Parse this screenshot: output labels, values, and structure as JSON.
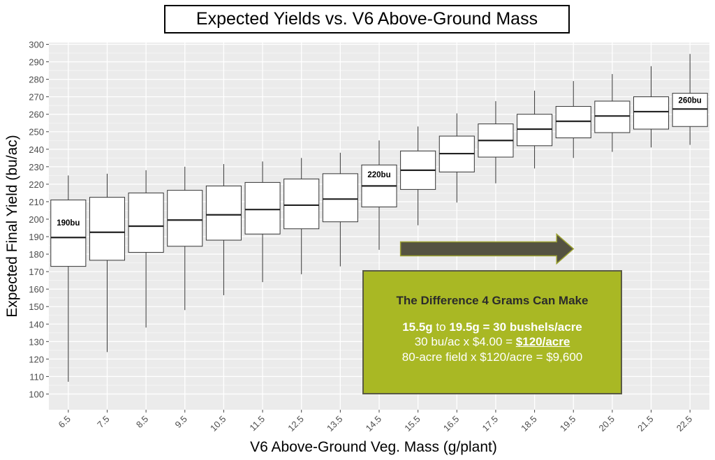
{
  "chart_data": {
    "type": "box",
    "title": "Expected Yields vs. V6 Above-Ground Mass",
    "xlabel": "V6 Above-Ground Veg. Mass (g/plant)",
    "ylabel": "Expected Final Yield (bu/ac)",
    "ylim": [
      91,
      301
    ],
    "yticks": [
      100,
      110,
      120,
      130,
      140,
      150,
      160,
      170,
      180,
      190,
      200,
      210,
      220,
      230,
      240,
      250,
      260,
      270,
      280,
      290,
      300
    ],
    "grid": true,
    "categories": [
      "6.5",
      "7.5",
      "8.5",
      "9.5",
      "10.5",
      "11.5",
      "12.5",
      "13.5",
      "14.5",
      "15.5",
      "16.5",
      "17.5",
      "18.5",
      "19.5",
      "20.5",
      "21.5",
      "22.5"
    ],
    "boxes": [
      {
        "min": 107,
        "q1": 173,
        "median": 189.5,
        "q3": 211,
        "max": 225
      },
      {
        "min": 124,
        "q1": 176.5,
        "median": 192.5,
        "q3": 212.5,
        "max": 226
      },
      {
        "min": 138,
        "q1": 181,
        "median": 196,
        "q3": 215,
        "max": 228
      },
      {
        "min": 148,
        "q1": 184.5,
        "median": 199.5,
        "q3": 216.5,
        "max": 230
      },
      {
        "min": 156.5,
        "q1": 188,
        "median": 202.5,
        "q3": 219,
        "max": 231.5
      },
      {
        "min": 164,
        "q1": 191.5,
        "median": 205.5,
        "q3": 221,
        "max": 233
      },
      {
        "min": 168.5,
        "q1": 194.5,
        "median": 208,
        "q3": 223,
        "max": 235
      },
      {
        "min": 173,
        "q1": 198.5,
        "median": 211.5,
        "q3": 226,
        "max": 238
      },
      {
        "min": 182.5,
        "q1": 207,
        "median": 219,
        "q3": 231,
        "max": 245
      },
      {
        "min": 196.5,
        "q1": 217,
        "median": 228,
        "q3": 239,
        "max": 253
      },
      {
        "min": 209.5,
        "q1": 227,
        "median": 237.5,
        "q3": 247.5,
        "max": 260.5
      },
      {
        "min": 220.5,
        "q1": 235.5,
        "median": 245,
        "q3": 254.5,
        "max": 267.5
      },
      {
        "min": 229,
        "q1": 242,
        "median": 251.5,
        "q3": 260,
        "max": 273.5
      },
      {
        "min": 235,
        "q1": 246.5,
        "median": 256,
        "q3": 264.5,
        "max": 279
      },
      {
        "min": 238.5,
        "q1": 249.5,
        "median": 259,
        "q3": 267.5,
        "max": 283
      },
      {
        "min": 241,
        "q1": 251.5,
        "median": 261.5,
        "q3": 270,
        "max": 287.5
      },
      {
        "min": 242.5,
        "q1": 253,
        "median": 263,
        "q3": 272,
        "max": 294.5
      }
    ],
    "annotations": [
      {
        "category": "6.5",
        "value": 198,
        "text": "190bu"
      },
      {
        "category": "14.5",
        "value": 225.5,
        "text": "220bu"
      },
      {
        "category": "22.5",
        "value": 268,
        "text": "260bu"
      }
    ],
    "arrow": {
      "from_category": "15.5",
      "to_category": "19.5",
      "value": 183,
      "color": "#545241",
      "outline": "#9aa030"
    }
  },
  "info_box": {
    "heading": "The Difference 4 Grams Can Make",
    "line1_a": "15.5g",
    "line1_b": " to ",
    "line1_c": "19.5g",
    "line1_d": " = 30 bushels/acre",
    "line2_a": "30 bu/ac x $4.00 = ",
    "line2_b": "$120/acre",
    "line3": "80-acre field x $120/acre = $9,600"
  }
}
